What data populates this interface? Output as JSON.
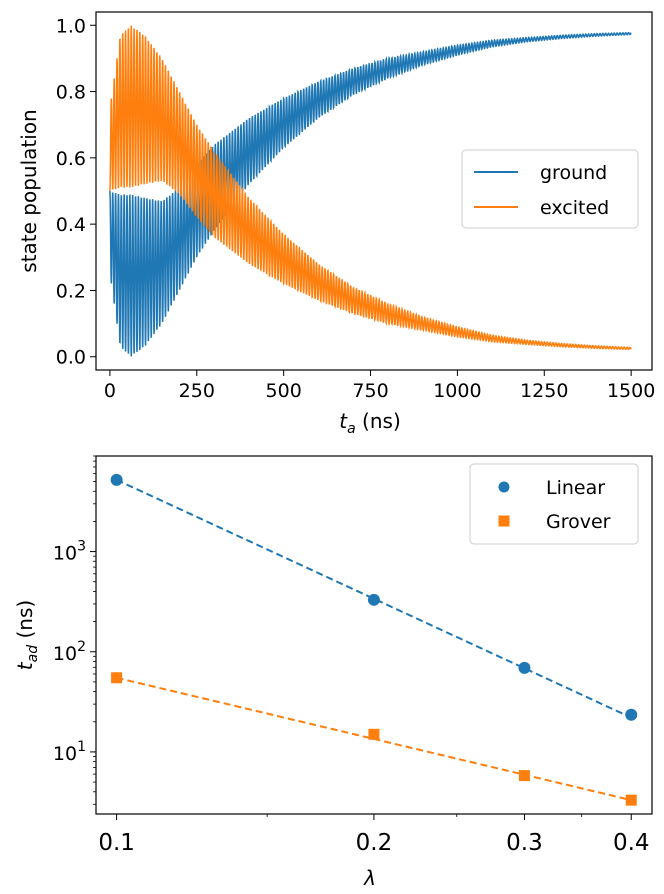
{
  "chart_data": [
    {
      "type": "line",
      "ylabel": "state population",
      "xlabel_var": "t",
      "xlabel_sub": "a",
      "xlabel_unit": " (ns)",
      "xlim": [
        -40,
        1560
      ],
      "ylim": [
        -0.04,
        1.04
      ],
      "xticks": [
        0,
        250,
        500,
        750,
        1000,
        1250,
        1500
      ],
      "xtick_labels": [
        "0",
        "250",
        "500",
        "750",
        "1000",
        "1250",
        "1500"
      ],
      "yticks": [
        0.0,
        0.2,
        0.4,
        0.6,
        0.8,
        1.0
      ],
      "ytick_labels": [
        "0.0",
        "0.2",
        "0.4",
        "0.6",
        "0.8",
        "1.0"
      ],
      "series": [
        {
          "name": "ground",
          "color": "#1f77b4",
          "envelope_upper": {
            "x": [
              0,
              30,
              60,
              100,
              150,
              200,
              250,
              300,
              400,
              500,
              600,
              700,
              800,
              900,
              1000,
              1100,
              1200,
              1300,
              1400,
              1500
            ],
            "y": [
              0.5,
              0.49,
              0.49,
              0.48,
              0.47,
              0.51,
              0.58,
              0.64,
              0.72,
              0.78,
              0.83,
              0.87,
              0.9,
              0.92,
              0.94,
              0.955,
              0.963,
              0.97,
              0.975,
              0.978
            ]
          },
          "envelope_lower": {
            "x": [
              0,
              30,
              60,
              100,
              150,
              200,
              250,
              300,
              400,
              500,
              600,
              700,
              800,
              900,
              1000,
              1100,
              1200,
              1300,
              1400,
              1500
            ],
            "y": [
              0.25,
              0.03,
              0.0,
              0.03,
              0.1,
              0.2,
              0.3,
              0.38,
              0.52,
              0.63,
              0.72,
              0.79,
              0.84,
              0.88,
              0.91,
              0.935,
              0.95,
              0.96,
              0.967,
              0.972
            ]
          }
        },
        {
          "name": "excited",
          "color": "#ff7f0e",
          "envelope_upper": {
            "x": [
              0,
              30,
              60,
              100,
              150,
              200,
              250,
              300,
              400,
              500,
              600,
              700,
              800,
              900,
              1000,
              1100,
              1200,
              1300,
              1400,
              1500
            ],
            "y": [
              0.75,
              0.97,
              1.0,
              0.97,
              0.9,
              0.8,
              0.7,
              0.62,
              0.48,
              0.37,
              0.28,
              0.21,
              0.16,
              0.12,
              0.09,
              0.065,
              0.05,
              0.04,
              0.033,
              0.028
            ]
          },
          "envelope_lower": {
            "x": [
              0,
              30,
              60,
              100,
              150,
              200,
              250,
              300,
              400,
              500,
              600,
              700,
              800,
              900,
              1000,
              1100,
              1200,
              1300,
              1400,
              1500
            ],
            "y": [
              0.5,
              0.51,
              0.51,
              0.52,
              0.53,
              0.49,
              0.42,
              0.36,
              0.28,
              0.22,
              0.17,
              0.13,
              0.1,
              0.08,
              0.06,
              0.045,
              0.037,
              0.03,
              0.025,
              0.022
            ]
          }
        }
      ],
      "legend": {
        "placement": "center-right",
        "entries": [
          "ground",
          "excited"
        ]
      }
    },
    {
      "type": "scatter",
      "xscale": "log",
      "yscale": "log",
      "xlabel": "λ",
      "ylabel_var": "t",
      "ylabel_sub": "ad",
      "ylabel_unit": " (ns)",
      "xlim": [
        0.0946,
        0.423
      ],
      "ylim": [
        2.4,
        9000
      ],
      "xticks": [
        0.1,
        0.2,
        0.3,
        0.4
      ],
      "xtick_labels": [
        "0.1",
        "0.2",
        "0.3",
        "0.4"
      ],
      "yticks": [
        10,
        100,
        1000
      ],
      "ytick_base": "10",
      "ytick_exps": [
        "1",
        "2",
        "3"
      ],
      "series": [
        {
          "name": "Linear",
          "marker": "circle",
          "color": "#1f77b4",
          "x": [
            0.1,
            0.2,
            0.3,
            0.4
          ],
          "y": [
            5200,
            330,
            69,
            23.5
          ],
          "fit": {
            "x": [
              0.1,
              0.4
            ],
            "y": [
              5200,
              22
            ]
          }
        },
        {
          "name": "Grover",
          "marker": "square",
          "color": "#ff7f0e",
          "x": [
            0.1,
            0.2,
            0.3,
            0.4
          ],
          "y": [
            55,
            15,
            5.8,
            3.3
          ],
          "fit": {
            "x": [
              0.1,
              0.4
            ],
            "y": [
              55,
              3.3
            ]
          }
        }
      ],
      "legend": {
        "placement": "top-right",
        "entries": [
          "Linear",
          "Grover"
        ]
      }
    }
  ]
}
